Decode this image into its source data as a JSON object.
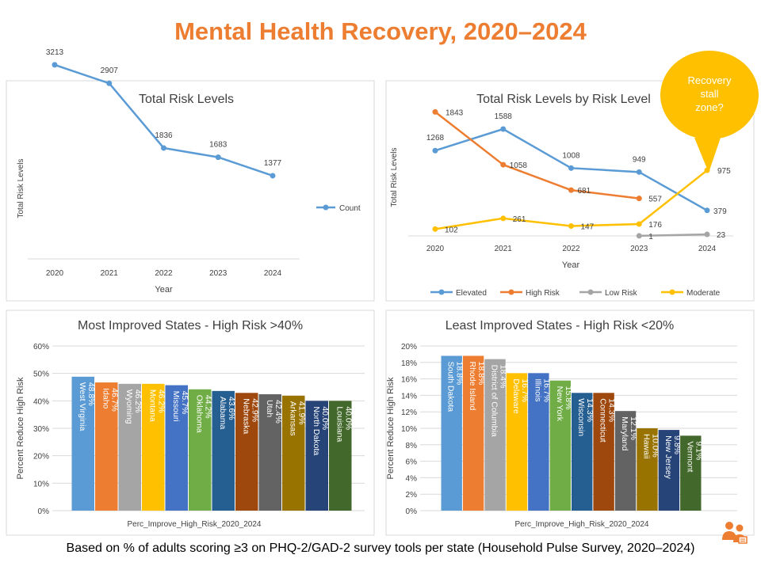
{
  "page": {
    "title": "Mental Health Recovery, 2020–2024",
    "footer": "Based on % of adults scoring ≥3 on PHQ-2/GAD-2 survey tools per state (Household Pulse Survey, 2020–2024)",
    "callout": [
      "Recovery",
      "stall",
      "zone?"
    ]
  },
  "colors": {
    "title": "#ED7D31",
    "blue": "#5B9BD5",
    "orange": "#ED7D31",
    "gray": "#A5A5A5",
    "yellow": "#FFC000",
    "callout": "#FFC000"
  },
  "chart_data": [
    {
      "id": "total",
      "type": "line",
      "title": "Total Risk Levels",
      "xlabel": "Year",
      "ylabel": "Total Risk Levels",
      "categories": [
        "2020",
        "2021",
        "2022",
        "2023",
        "2024"
      ],
      "ylim": [
        0,
        3500
      ],
      "legend": "right",
      "series": [
        {
          "name": "Count",
          "color": "#5B9BD5",
          "values": [
            3213,
            2907,
            1836,
            1683,
            1377
          ]
        }
      ]
    },
    {
      "id": "bylevel",
      "type": "line",
      "title": "Total Risk Levels by Risk Level",
      "xlabel": "Year",
      "ylabel": "Total Risk Levels",
      "categories": [
        "2020",
        "2021",
        "2022",
        "2023",
        "2024"
      ],
      "ylim": [
        0,
        2000
      ],
      "legend": "bottom",
      "series": [
        {
          "name": "Elevated",
          "color": "#5B9BD5",
          "values": [
            1268,
            1588,
            1008,
            949,
            379
          ]
        },
        {
          "name": "High Risk",
          "color": "#ED7D31",
          "values": [
            1843,
            1058,
            681,
            557,
            null
          ]
        },
        {
          "name": "Low Risk",
          "color": "#A5A5A5",
          "values": [
            null,
            null,
            null,
            1,
            23
          ]
        },
        {
          "name": "Moderate",
          "color": "#FFC000",
          "values": [
            102,
            261,
            147,
            176,
            975
          ]
        }
      ]
    },
    {
      "id": "most",
      "type": "bar",
      "title": "Most Improved States - High Risk >40%",
      "xlabel": "Perc_Improve_High_Risk_2020_2024",
      "ylabel": "Percent Reduce High Risk",
      "ylim": [
        0,
        60
      ],
      "yticks": [
        0,
        10,
        20,
        30,
        40,
        50,
        60
      ],
      "categories": [
        "West Virginia",
        "Idaho",
        "Wyoming",
        "Montana",
        "Missouri",
        "Oklahoma",
        "Alabama",
        "Nebraska",
        "Utah",
        "Arkansas",
        "North Dakota",
        "Louisiana"
      ],
      "values": [
        48.8,
        46.7,
        46.2,
        46.2,
        45.7,
        44.2,
        43.6,
        42.9,
        42.4,
        41.9,
        40.0,
        40.0
      ],
      "labels": [
        "48.8%",
        "46.7%",
        "46.2%",
        "46.2%",
        "45.7%",
        "44.2%",
        "43.6%",
        "42.9%",
        "42.4%",
        "41.9%",
        "40.0%",
        "40.0%"
      ],
      "colors": [
        "#5B9BD5",
        "#ED7D31",
        "#A5A5A5",
        "#FFC000",
        "#4472C4",
        "#70AD47",
        "#255E91",
        "#9E480E",
        "#636363",
        "#997300",
        "#264478",
        "#43682B"
      ]
    },
    {
      "id": "least",
      "type": "bar",
      "title": "Least Improved States - High Risk <20%",
      "xlabel": "Perc_Improve_High_Risk_2020_2024",
      "ylabel": "Percent Reduce High Risk",
      "ylim": [
        0,
        20
      ],
      "yticks": [
        0,
        2,
        4,
        6,
        8,
        10,
        12,
        14,
        16,
        18,
        20
      ],
      "categories": [
        "South Dakota",
        "Rhode Island",
        "District of Columbia",
        "Delaware",
        "Illinois",
        "New York",
        "Wisconsin",
        "Connecticut",
        "Maryland",
        "Hawaii",
        "New Jersey",
        "Vermont"
      ],
      "values": [
        18.8,
        18.8,
        18.4,
        16.7,
        16.7,
        15.8,
        14.3,
        14.3,
        12.1,
        10.0,
        9.8,
        9.1
      ],
      "labels": [
        "18.8%",
        "18.8%",
        "18.4%",
        "16.7%",
        "16.7%",
        "15.8%",
        "14.3%",
        "14.3%",
        "12.1%",
        "10.0%",
        "9.8%",
        "9.1%"
      ],
      "colors": [
        "#5B9BD5",
        "#ED7D31",
        "#A5A5A5",
        "#FFC000",
        "#4472C4",
        "#70AD47",
        "#255E91",
        "#9E480E",
        "#636363",
        "#997300",
        "#264478",
        "#43682B"
      ]
    }
  ]
}
